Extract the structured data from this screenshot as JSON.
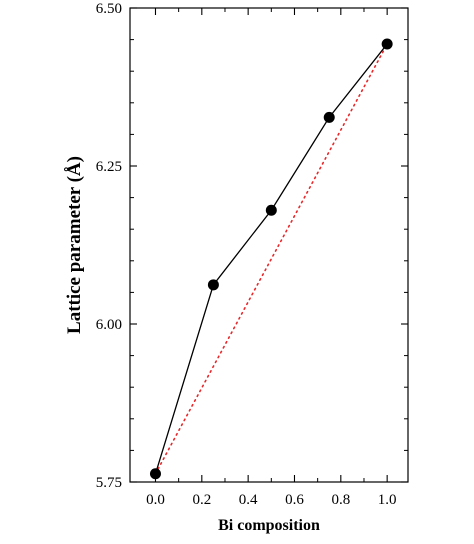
{
  "chart_data": {
    "type": "line",
    "title": "",
    "xlabel": "Bi composition",
    "ylabel": "Lattice parameter (Å)",
    "xlim": [
      -0.11,
      1.09
    ],
    "ylim": [
      5.75,
      6.5
    ],
    "grid": false,
    "x_ticks": [
      {
        "value": 0.0,
        "label": "0.0"
      },
      {
        "value": 0.2,
        "label": "0.2"
      },
      {
        "value": 0.4,
        "label": "0.4"
      },
      {
        "value": 0.6,
        "label": "0.6"
      },
      {
        "value": 0.8,
        "label": "0.8"
      },
      {
        "value": 1.0,
        "label": "1.0"
      }
    ],
    "y_ticks": [
      {
        "value": 5.75,
        "label": "5.75"
      },
      {
        "value": 6.0,
        "label": "6.00"
      },
      {
        "value": 6.25,
        "label": "6.25"
      },
      {
        "value": 6.5,
        "label": "6.50"
      }
    ],
    "series": [
      {
        "style": "solid line with filled circle markers",
        "color": "#000000",
        "x": [
          0.0,
          0.25,
          0.5,
          0.75,
          1.0
        ],
        "y": [
          5.763,
          6.062,
          6.18,
          6.327,
          6.443
        ]
      },
      {
        "style": "dotted line",
        "color": "#e8282a",
        "x": [
          0.0,
          1.0
        ],
        "y": [
          5.763,
          6.443
        ]
      }
    ]
  }
}
